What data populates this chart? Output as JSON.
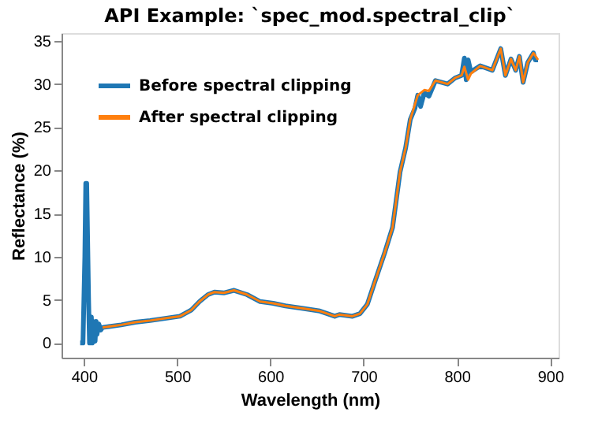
{
  "chart_data": {
    "type": "line",
    "title": "API Example: `spec_mod.spectral_clip`",
    "xlabel": "Wavelength (nm)",
    "ylabel": "Reflectance (%)",
    "xlim": [
      376,
      909
    ],
    "ylim": [
      -1.7,
      35.9
    ],
    "xticks": [
      400,
      500,
      600,
      700,
      800,
      900
    ],
    "yticks": [
      0,
      5,
      10,
      15,
      20,
      25,
      30,
      35
    ],
    "grid": false,
    "legend": "top left",
    "line_style": "solid",
    "marker": "none",
    "series": [
      {
        "name": "Before spectral clipping",
        "color": "#1f77b4",
        "x": [
          396,
          399,
          401,
          402,
          403,
          405,
          406,
          407,
          408,
          409,
          410,
          412,
          413,
          414,
          416,
          418,
          420,
          427,
          440,
          455,
          471,
          490,
          503,
          515,
          524,
          533,
          540,
          550,
          561,
          575,
          589,
          603,
          616,
          635,
          653,
          669,
          674,
          688,
          696,
          704,
          712,
          723,
          731,
          739,
          745,
          750,
          755,
          758,
          761,
          765,
          770,
          777,
          790,
          798,
          805,
          808,
          810,
          812,
          815,
          825,
          838,
          847,
          852,
          858,
          863,
          867,
          871,
          876,
          882,
          884,
          887
        ],
        "values": [
          0,
          0,
          10,
          18.5,
          18.5,
          5,
          0,
          0.3,
          3,
          0,
          2.5,
          0.2,
          2.5,
          1,
          2.2,
          1.5,
          1.8,
          1.9,
          2.1,
          2.4,
          2.6,
          2.9,
          3.1,
          3.8,
          4.8,
          5.6,
          5.9,
          5.8,
          6.1,
          5.6,
          4.8,
          4.6,
          4.3,
          4.0,
          3.7,
          3.1,
          3.3,
          3.1,
          3.4,
          4.5,
          7.1,
          10.6,
          13.4,
          19.8,
          22.6,
          25.9,
          27.2,
          28.7,
          27.4,
          29.0,
          28.6,
          30.4,
          30.0,
          30.7,
          31.0,
          33.0,
          30.5,
          32.8,
          31.4,
          32.1,
          31.6,
          34.1,
          31.0,
          32.9,
          31.6,
          33.2,
          30.2,
          32.5,
          33.6,
          32.8,
          32.8
        ]
      },
      {
        "name": "After spectral clipping",
        "color": "#ff7f0e",
        "x": [
          420,
          427,
          440,
          455,
          471,
          490,
          503,
          515,
          524,
          533,
          540,
          550,
          561,
          575,
          589,
          603,
          616,
          635,
          653,
          669,
          674,
          688,
          696,
          704,
          712,
          723,
          731,
          739,
          745,
          750,
          758,
          765,
          770,
          777,
          790,
          798,
          805,
          808,
          812,
          815,
          825,
          838,
          847,
          852,
          858,
          863,
          867,
          871,
          876,
          882,
          887
        ],
        "values": [
          1.8,
          1.9,
          2.1,
          2.4,
          2.6,
          2.9,
          3.1,
          3.8,
          4.8,
          5.6,
          5.9,
          5.8,
          6.1,
          5.6,
          4.8,
          4.6,
          4.3,
          4.0,
          3.7,
          3.1,
          3.3,
          3.1,
          3.4,
          4.5,
          7.1,
          10.6,
          13.4,
          19.8,
          22.6,
          25.9,
          28.7,
          29.3,
          29.2,
          30.4,
          30.0,
          30.7,
          31.0,
          32.0,
          30.5,
          31.2,
          32.1,
          31.6,
          34.1,
          31.0,
          32.9,
          31.6,
          33.2,
          30.2,
          32.5,
          33.6,
          32.8
        ]
      }
    ]
  }
}
